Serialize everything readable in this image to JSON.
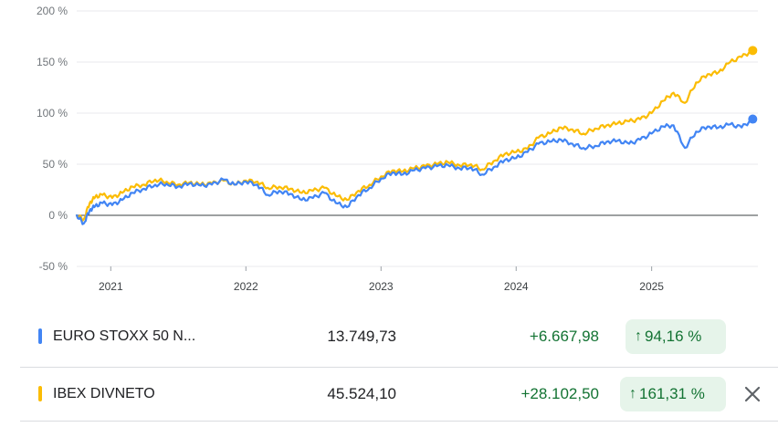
{
  "chart_data": {
    "type": "line",
    "title": "",
    "xlabel": "",
    "ylabel": "",
    "ylim": [
      -50,
      200
    ],
    "y_ticks": [
      200,
      150,
      100,
      50,
      0,
      -50
    ],
    "y_tick_labels": [
      "200 %",
      "150 %",
      "100 %",
      "50 %",
      "0 %",
      "-50 %"
    ],
    "x_ticks": [
      "2021",
      "2022",
      "2023",
      "2024",
      "2025"
    ],
    "x_tick_dates": [
      "2021-01-01",
      "2022-01-01",
      "2023-01-01",
      "2024-01-01",
      "2025-01-01"
    ],
    "xlim": [
      "2020-10-01",
      "2025-10-15"
    ],
    "baseline": 0,
    "grid": true,
    "series": [
      {
        "name": "IBEX DIVNETO",
        "color": "#fbbc04",
        "points": [
          [
            "2020-10-01",
            0
          ],
          [
            "2020-10-20",
            -4
          ],
          [
            "2020-11-05",
            12
          ],
          [
            "2020-11-20",
            18
          ],
          [
            "2020-12-10",
            20
          ],
          [
            "2021-01-05",
            17
          ],
          [
            "2021-02-01",
            22
          ],
          [
            "2021-03-01",
            28
          ],
          [
            "2021-04-01",
            30
          ],
          [
            "2021-05-01",
            35
          ],
          [
            "2021-06-01",
            33
          ],
          [
            "2021-07-01",
            30
          ],
          [
            "2021-08-01",
            32
          ],
          [
            "2021-09-01",
            30
          ],
          [
            "2021-10-01",
            31
          ],
          [
            "2021-11-01",
            34
          ],
          [
            "2021-12-01",
            30
          ],
          [
            "2022-01-01",
            34
          ],
          [
            "2022-02-01",
            33
          ],
          [
            "2022-03-01",
            27
          ],
          [
            "2022-04-01",
            28
          ],
          [
            "2022-05-01",
            26
          ],
          [
            "2022-06-01",
            22
          ],
          [
            "2022-07-01",
            24
          ],
          [
            "2022-08-01",
            27
          ],
          [
            "2022-09-01",
            19
          ],
          [
            "2022-10-01",
            15
          ],
          [
            "2022-11-01",
            24
          ],
          [
            "2022-12-01",
            30
          ],
          [
            "2023-01-01",
            38
          ],
          [
            "2023-02-01",
            44
          ],
          [
            "2023-03-01",
            43
          ],
          [
            "2023-04-01",
            46
          ],
          [
            "2023-05-01",
            48
          ],
          [
            "2023-06-01",
            50
          ],
          [
            "2023-07-01",
            52
          ],
          [
            "2023-08-01",
            49
          ],
          [
            "2023-09-01",
            50
          ],
          [
            "2023-10-01",
            45
          ],
          [
            "2023-11-01",
            53
          ],
          [
            "2023-12-01",
            60
          ],
          [
            "2024-01-01",
            62
          ],
          [
            "2024-02-01",
            65
          ],
          [
            "2024-03-01",
            76
          ],
          [
            "2024-04-01",
            80
          ],
          [
            "2024-05-01",
            86
          ],
          [
            "2024-06-01",
            84
          ],
          [
            "2024-07-01",
            80
          ],
          [
            "2024-08-01",
            85
          ],
          [
            "2024-09-01",
            88
          ],
          [
            "2024-10-01",
            90
          ],
          [
            "2024-11-01",
            92
          ],
          [
            "2024-12-01",
            94
          ],
          [
            "2025-01-01",
            100
          ],
          [
            "2025-02-01",
            112
          ],
          [
            "2025-03-01",
            120
          ],
          [
            "2025-04-01",
            110
          ],
          [
            "2025-05-01",
            130
          ],
          [
            "2025-06-01",
            138
          ],
          [
            "2025-07-01",
            140
          ],
          [
            "2025-08-01",
            150
          ],
          [
            "2025-09-01",
            155
          ],
          [
            "2025-10-01",
            161.31
          ]
        ]
      },
      {
        "name": "EURO STOXX 50 N...",
        "color": "#4285f4",
        "points": [
          [
            "2020-10-01",
            0
          ],
          [
            "2020-10-20",
            -8
          ],
          [
            "2020-11-05",
            5
          ],
          [
            "2020-11-20",
            9
          ],
          [
            "2020-12-10",
            12
          ],
          [
            "2021-01-05",
            10
          ],
          [
            "2021-02-01",
            15
          ],
          [
            "2021-03-01",
            22
          ],
          [
            "2021-04-01",
            26
          ],
          [
            "2021-05-01",
            30
          ],
          [
            "2021-06-01",
            31
          ],
          [
            "2021-07-01",
            28
          ],
          [
            "2021-08-01",
            31
          ],
          [
            "2021-09-01",
            29
          ],
          [
            "2021-10-01",
            30
          ],
          [
            "2021-11-01",
            35
          ],
          [
            "2021-12-01",
            30
          ],
          [
            "2022-01-01",
            33
          ],
          [
            "2022-02-01",
            30
          ],
          [
            "2022-03-01",
            20
          ],
          [
            "2022-04-01",
            24
          ],
          [
            "2022-05-01",
            21
          ],
          [
            "2022-06-01",
            15
          ],
          [
            "2022-07-01",
            17
          ],
          [
            "2022-08-01",
            22
          ],
          [
            "2022-09-01",
            12
          ],
          [
            "2022-10-01",
            8
          ],
          [
            "2022-11-01",
            20
          ],
          [
            "2022-12-01",
            27
          ],
          [
            "2023-01-01",
            36
          ],
          [
            "2023-02-01",
            42
          ],
          [
            "2023-03-01",
            40
          ],
          [
            "2023-04-01",
            44
          ],
          [
            "2023-05-01",
            46
          ],
          [
            "2023-06-01",
            48
          ],
          [
            "2023-07-01",
            49
          ],
          [
            "2023-08-01",
            46
          ],
          [
            "2023-09-01",
            47
          ],
          [
            "2023-10-01",
            40
          ],
          [
            "2023-11-01",
            47
          ],
          [
            "2023-12-01",
            54
          ],
          [
            "2024-01-01",
            56
          ],
          [
            "2024-02-01",
            62
          ],
          [
            "2024-03-01",
            70
          ],
          [
            "2024-04-01",
            72
          ],
          [
            "2024-05-01",
            74
          ],
          [
            "2024-06-01",
            70
          ],
          [
            "2024-07-01",
            66
          ],
          [
            "2024-08-01",
            68
          ],
          [
            "2024-09-01",
            72
          ],
          [
            "2024-10-01",
            73
          ],
          [
            "2024-11-01",
            70
          ],
          [
            "2024-12-01",
            74
          ],
          [
            "2025-01-01",
            80
          ],
          [
            "2025-02-01",
            87
          ],
          [
            "2025-03-01",
            88
          ],
          [
            "2025-04-01",
            66
          ],
          [
            "2025-05-01",
            82
          ],
          [
            "2025-06-01",
            87
          ],
          [
            "2025-07-01",
            86
          ],
          [
            "2025-08-01",
            89
          ],
          [
            "2025-09-01",
            86
          ],
          [
            "2025-10-01",
            94.16
          ]
        ]
      }
    ]
  },
  "legend_rows": [
    {
      "name": "EURO STOXX 50 N...",
      "color": "#4285f4",
      "price": "13.749,73",
      "change": "+6.667,98",
      "percent": "94,16 %",
      "arrow": "↑"
    },
    {
      "name": "IBEX DIVNETO",
      "color": "#fbbc04",
      "price": "45.524,10",
      "change": "+28.102,50",
      "percent": "161,31 %",
      "arrow": "↑",
      "close_icon": "close-icon"
    }
  ]
}
